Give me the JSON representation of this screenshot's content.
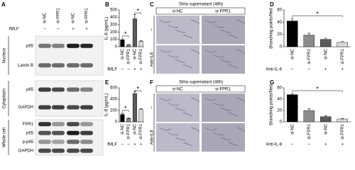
{
  "blot": {
    "panel": "A",
    "treatment_label": "fMLF",
    "lanes": [
      {
        "treatment": "–",
        "name": "si-NC"
      },
      {
        "treatment": "–",
        "name": "si-FPR1"
      },
      {
        "treatment": "+",
        "name": "si-NC"
      },
      {
        "treatment": "+",
        "name": "si-FPR1"
      }
    ],
    "sections": [
      {
        "name": "Nucleus",
        "bands": [
          "p65",
          "Lamin B"
        ]
      },
      {
        "name": "Cytoplasm",
        "bands": [
          "p65",
          "GAPDH"
        ]
      },
      {
        "name": "Whole cell",
        "bands": [
          "FPR1",
          "p65",
          "p-p65",
          "GAPDH"
        ]
      }
    ]
  },
  "images": [
    {
      "panel": "C",
      "title": "SiHa supernatant (48h)",
      "columns": [
        "si-NC",
        "si-FPR1"
      ],
      "rows": [
        "–",
        "Anti-IL6"
      ]
    },
    {
      "panel": "F",
      "title": "SiHa supernatant (48h)",
      "columns": [
        "si-NC",
        "si-FPR1"
      ],
      "rows": [
        "–",
        "Anti-IL8"
      ]
    }
  ],
  "chart_data": [
    {
      "type": "bar",
      "panel": "B",
      "y_label": "IL-6 (pg/mL)",
      "categories": [
        "si-NC",
        "si-FPR1",
        "si-NC",
        "si-FPR1"
      ],
      "group_label": "fMLF",
      "group_values": [
        "–",
        "–",
        "+",
        "+"
      ],
      "values": [
        95,
        25,
        380,
        75
      ],
      "errors": [
        12,
        5,
        60,
        6
      ],
      "colors": [
        "#000000",
        "#8c8c8c",
        "#5a5a5a",
        "#d9d9d9"
      ],
      "ylim": [
        0,
        500
      ],
      "yticks": [
        0,
        100,
        200,
        300,
        400,
        500
      ],
      "annotations": [
        "*",
        "*"
      ]
    },
    {
      "type": "bar",
      "panel": "E",
      "y_label": "IL-8 (pg/mL)",
      "categories": [
        "si-NC",
        "si-FPR1",
        "si-NC",
        "si-FPR1"
      ],
      "group_label": "fMLF",
      "group_values": [
        "–",
        "–",
        "+",
        "+"
      ],
      "values": [
        130,
        60,
        500,
        220
      ],
      "errors": [
        22,
        10,
        40,
        15
      ],
      "colors": [
        "#000000",
        "#8c8c8c",
        "#5a5a5a",
        "#d9d9d9"
      ],
      "ylim": [
        0,
        600
      ],
      "yticks": [
        0,
        200,
        400,
        600
      ],
      "annotations": [
        "*",
        "*"
      ]
    },
    {
      "type": "bar",
      "panel": "D",
      "y_label": "Branching points/filed",
      "categories": [
        "si-NC",
        "si-FPR1",
        "si-NC",
        "si-FPR1"
      ],
      "group_label": "Anti-IL-6",
      "group_values": [
        "–",
        "–",
        "+",
        "+"
      ],
      "values": [
        42,
        19,
        12,
        7
      ],
      "errors": [
        4,
        3,
        2,
        1.5
      ],
      "colors": [
        "#000000",
        "#8c8c8c",
        "#5a5a5a",
        "#d9d9d9"
      ],
      "ylim": [
        0,
        60
      ],
      "yticks": [
        0,
        20,
        40,
        60
      ],
      "annotations": [
        "*"
      ]
    },
    {
      "type": "bar",
      "panel": "G",
      "y_label": "Branching points/filed",
      "categories": [
        "si-NC",
        "si-FPR1",
        "si-NC",
        "si-FPR1"
      ],
      "group_label": "Anti-IL-8",
      "group_values": [
        "–",
        "–",
        "+",
        "+"
      ],
      "values": [
        48,
        20,
        9,
        5
      ],
      "errors": [
        2,
        3,
        2,
        1
      ],
      "colors": [
        "#000000",
        "#8c8c8c",
        "#5a5a5a",
        "#d9d9d9"
      ],
      "ylim": [
        0,
        60
      ],
      "yticks": [
        0,
        20,
        40,
        60
      ],
      "annotations": [
        "*"
      ]
    }
  ]
}
